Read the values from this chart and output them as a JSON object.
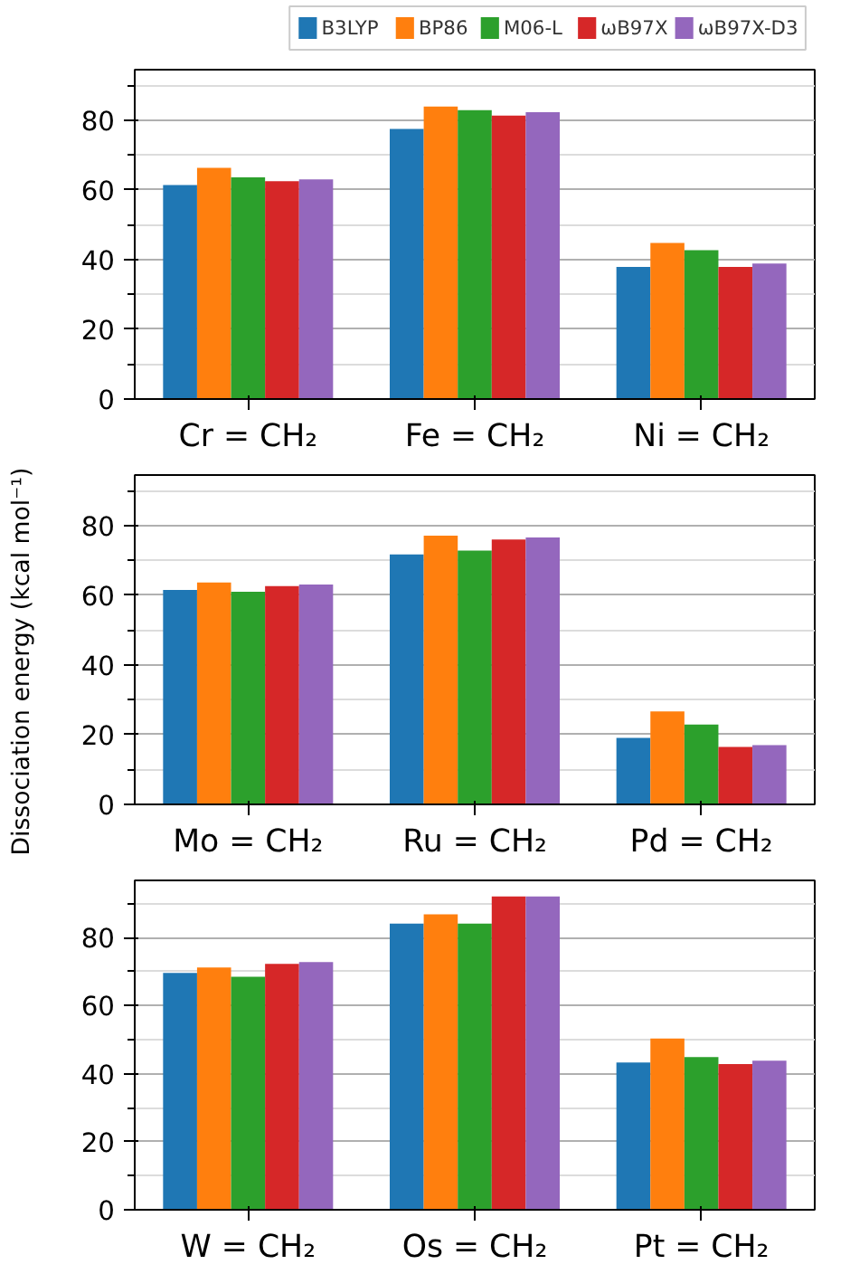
{
  "chart_data": [
    {
      "type": "bar",
      "categories": [
        "Cr = CH₂",
        "Fe = CH₂",
        "Ni = CH₂"
      ],
      "ylim": [
        0,
        94.5
      ],
      "yticks": [
        0,
        {
          "value": 10,
          "label": null
        },
        20,
        {
          "value": 30,
          "label": null
        },
        40,
        {
          "value": 50,
          "label": null
        },
        60,
        {
          "value": 70,
          "label": null
        },
        80,
        {
          "value": 90,
          "label": null
        }
      ],
      "grid": "y",
      "legend": "top",
      "series": [
        {
          "name": "B3LYP",
          "color": "#1f77b4",
          "values": [
            61.4,
            77.5,
            37.9
          ]
        },
        {
          "name": "BP86",
          "color": "#ff7f0e",
          "values": [
            66.3,
            83.9,
            44.8
          ]
        },
        {
          "name": "M06-L",
          "color": "#2ca02c",
          "values": [
            63.6,
            82.9,
            42.7
          ]
        },
        {
          "name": "ωB97X",
          "color": "#d62728",
          "values": [
            62.5,
            81.3,
            37.9
          ]
        },
        {
          "name": "ωB97X-D3",
          "color": "#9467bd",
          "values": [
            63.0,
            82.3,
            38.9
          ]
        }
      ]
    },
    {
      "type": "bar",
      "categories": [
        "Mo = CH₂",
        "Ru = CH₂",
        "Pd = CH₂"
      ],
      "ylabel": "Dissociation energy (kcal mol⁻¹)",
      "ylim": [
        0,
        94.5
      ],
      "yticks": [
        0,
        {
          "value": 10,
          "label": null
        },
        20,
        {
          "value": 30,
          "label": null
        },
        40,
        {
          "value": 50,
          "label": null
        },
        60,
        {
          "value": 70,
          "label": null
        },
        80,
        {
          "value": 90,
          "label": null
        }
      ],
      "grid": "y",
      "series": [
        {
          "color": "#1f77b4",
          "values": [
            61.5,
            71.7,
            19.1
          ]
        },
        {
          "color": "#ff7f0e",
          "values": [
            63.7,
            77.1,
            26.7
          ]
        },
        {
          "color": "#2ca02c",
          "values": [
            61.0,
            72.8,
            22.9
          ]
        },
        {
          "color": "#d62728",
          "values": [
            62.6,
            76.0,
            16.5
          ]
        },
        {
          "color": "#9467bd",
          "values": [
            63.1,
            76.6,
            17.0
          ]
        }
      ]
    },
    {
      "type": "bar",
      "categories": [
        "W = CH₂",
        "Os = CH₂",
        "Pt = CH₂"
      ],
      "ylim": [
        0,
        96.8
      ],
      "yticks": [
        0,
        {
          "value": 10,
          "label": null
        },
        20,
        {
          "value": 30,
          "label": null
        },
        40,
        {
          "value": 50,
          "label": null
        },
        60,
        {
          "value": 70,
          "label": null
        },
        80,
        {
          "value": 90,
          "label": null
        }
      ],
      "grid": "y",
      "series": [
        {
          "color": "#1f77b4",
          "values": [
            69.6,
            84.1,
            43.3
          ]
        },
        {
          "color": "#ff7f0e",
          "values": [
            71.2,
            86.8,
            50.3
          ]
        },
        {
          "color": "#2ca02c",
          "values": [
            68.5,
            84.1,
            44.9
          ]
        },
        {
          "color": "#d62728",
          "values": [
            72.3,
            92.1,
            42.8
          ]
        },
        {
          "color": "#9467bd",
          "values": [
            72.8,
            92.1,
            43.8
          ]
        }
      ]
    }
  ]
}
